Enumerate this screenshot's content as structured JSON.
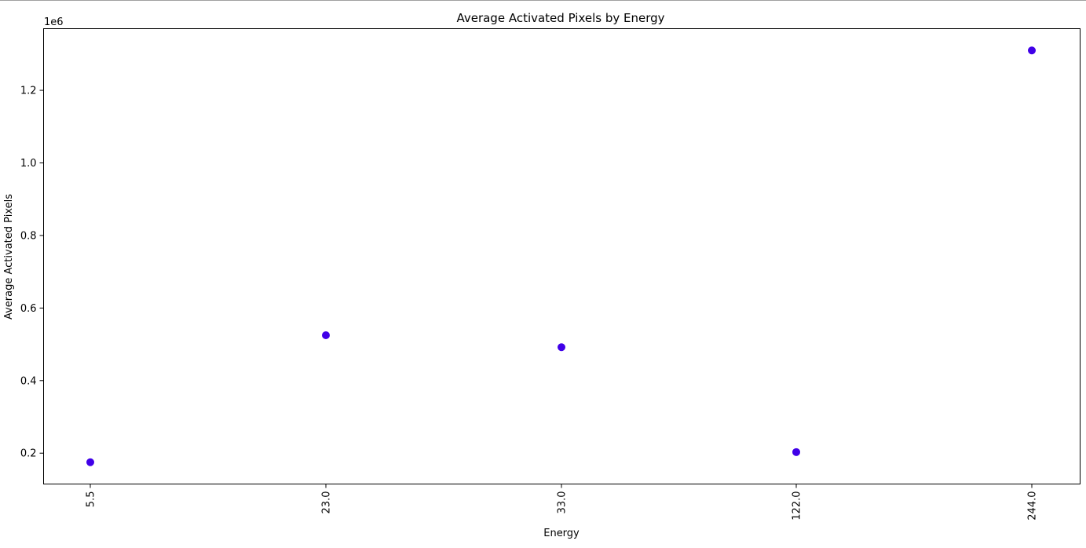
{
  "chart_data": {
    "type": "scatter",
    "title": "Average Activated Pixels by Energy",
    "xlabel": "Energy",
    "ylabel": "Average Activated Pixels",
    "y_offset_label": "1e6",
    "categories": [
      "5.5",
      "23.0",
      "33.0",
      "122.0",
      "244.0"
    ],
    "values": [
      175000,
      525000,
      492000,
      203000,
      1310000
    ],
    "y_ticks": [
      {
        "value": 0.2,
        "label": "0.2"
      },
      {
        "value": 0.4,
        "label": "0.4"
      },
      {
        "value": 0.6,
        "label": "0.6"
      },
      {
        "value": 0.8,
        "label": "0.8"
      },
      {
        "value": 1.0,
        "label": "1.0"
      },
      {
        "value": 1.2,
        "label": "1.2"
      }
    ],
    "y_multiplier": 1000000,
    "ylim": [
      115000,
      1370000
    ],
    "x_tick_rotation": "vertical",
    "grid": false,
    "legend": "none",
    "marker_color": "#4000e8"
  }
}
